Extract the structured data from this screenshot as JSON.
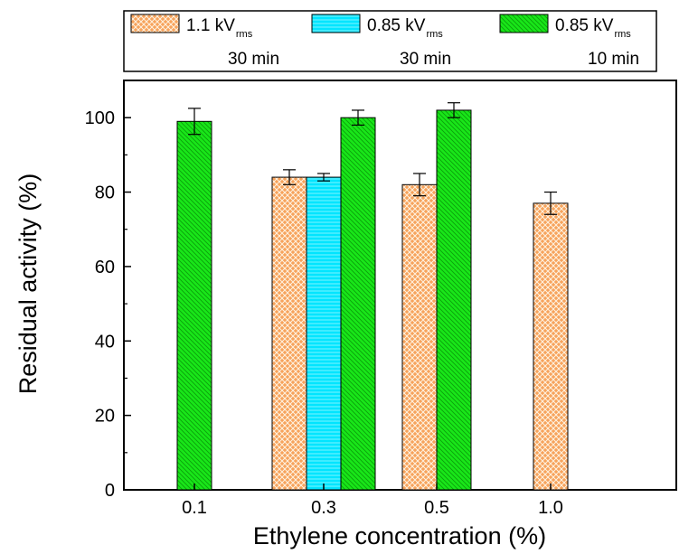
{
  "chart_data": {
    "type": "bar",
    "title": "",
    "xlabel": "Ethylene concentration (%)",
    "ylabel": "Residual activity (%)",
    "categories": [
      "0.1",
      "0.3",
      "0.5",
      "1.0"
    ],
    "ylim": [
      0,
      110
    ],
    "yticks": [
      "0",
      "20",
      "40",
      "60",
      "80",
      "100"
    ],
    "legend_position": "top-outside",
    "series": [
      {
        "name": "1.1 kVrms 30 min",
        "legend_main": "1.1 kV",
        "legend_sub": "rms",
        "legend_time": "30 min",
        "color": "#f7a35c",
        "pattern": "crosshatch",
        "values": [
          null,
          84,
          82,
          77
        ],
        "errors": [
          null,
          2,
          3,
          3
        ]
      },
      {
        "name": "0.85 kVrms 30 min",
        "legend_main": "0.85 kV",
        "legend_sub": "rms",
        "legend_time": "30 min",
        "color": "#00e5ff",
        "pattern": "horizontal-lines",
        "values": [
          null,
          84,
          null,
          null
        ],
        "errors": [
          null,
          1,
          null,
          null
        ]
      },
      {
        "name": "0.85 kVrms 10 min",
        "legend_main": "0.85 kV",
        "legend_sub": "rms",
        "legend_time": "10 min",
        "color": "#19e619",
        "pattern": "diagonal-lines",
        "values": [
          99,
          100,
          102,
          null
        ],
        "errors": [
          3.5,
          2,
          2,
          null
        ]
      }
    ]
  }
}
